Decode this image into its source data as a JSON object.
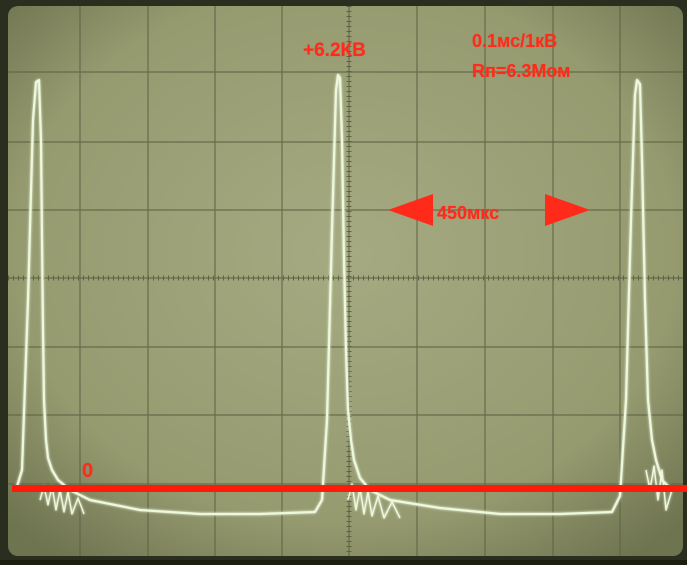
{
  "annotations": {
    "peak_voltage": "+6.2КВ",
    "scale": "0.1мс/1кВ",
    "load_resistance": "Rп=6.3Мом",
    "period": "450мкс",
    "zero_level": "0"
  },
  "colors": {
    "screen": "#9fa37a",
    "trace": "#ecf7dc",
    "grid": "#58603f",
    "annotation": "#ff2a1a"
  },
  "icons": [
    "arrow-left-icon",
    "arrow-right-icon"
  ]
}
